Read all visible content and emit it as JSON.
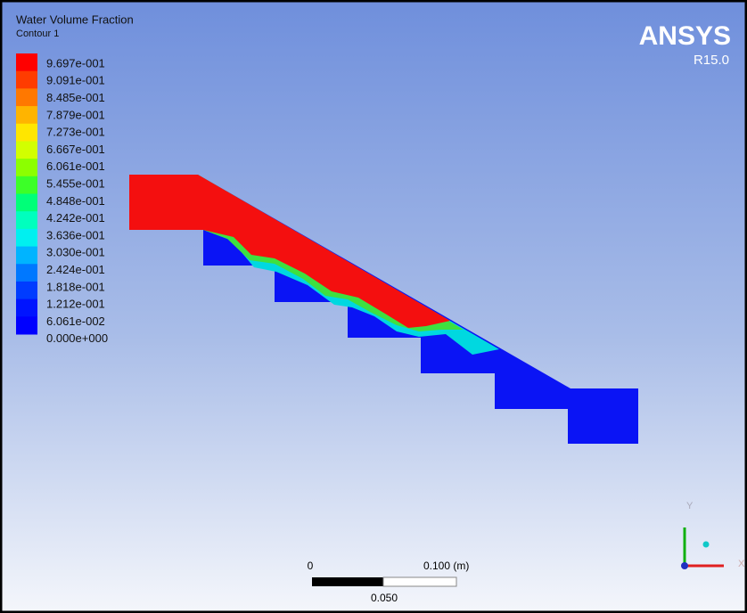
{
  "header": {
    "title": "Water Volume Fraction",
    "subtitle": "Contour 1"
  },
  "logo": {
    "name": "ANSYS",
    "version": "R15.0"
  },
  "legend": {
    "labels": [
      "9.697e-001",
      "9.091e-001",
      "8.485e-001",
      "7.879e-001",
      "7.273e-001",
      "6.667e-001",
      "6.061e-001",
      "5.455e-001",
      "4.848e-001",
      "4.242e-001",
      "3.636e-001",
      "3.030e-001",
      "2.424e-001",
      "1.818e-001",
      "1.212e-001",
      "6.061e-002",
      "0.000e+000"
    ]
  },
  "scale_bar": {
    "start": "0",
    "end": "0.100 (m)",
    "mid": "0.050"
  },
  "axes": {
    "y": "Y",
    "x": "X"
  }
}
